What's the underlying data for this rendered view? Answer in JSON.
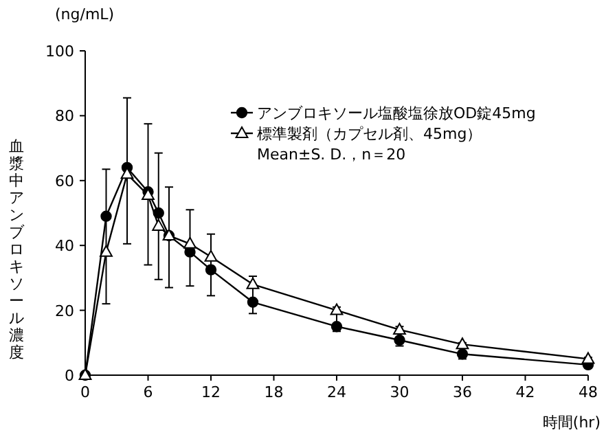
{
  "chart_data": {
    "type": "line",
    "x": [
      0,
      2,
      4,
      6,
      7,
      8,
      10,
      12,
      16,
      24,
      30,
      36,
      48
    ],
    "series": [
      {
        "name": "アンブロキソール塩酸塩徐放OD錠45mg",
        "color": "#000000",
        "marker": "circle",
        "values": [
          0,
          49,
          64,
          56.5,
          50,
          43,
          38,
          32.5,
          22.5,
          15,
          10.8,
          6.5,
          3.2
        ],
        "errors": [
          null,
          [
            22,
            63.5
          ],
          [
            40.5,
            85.5
          ],
          [
            34,
            77.5
          ],
          [
            29.5,
            68.5
          ],
          [
            27,
            58
          ],
          [
            27.5,
            51
          ],
          [
            24.5,
            43.5
          ],
          [
            19,
            30.5
          ],
          [
            13.5,
            21
          ],
          [
            9,
            15
          ],
          [
            5,
            10
          ],
          [
            2.5,
            5.5
          ]
        ]
      },
      {
        "name": "標準製剤（カプセル剤、45mg）",
        "color": "#000000",
        "marker": "triangle",
        "values": [
          0,
          38,
          62,
          55.5,
          46,
          43,
          40.5,
          36.5,
          28,
          20,
          14,
          9.5,
          5
        ]
      }
    ],
    "xlabel": "時間(hr)",
    "ylabel": "血漿中アンブロキソール濃度",
    "annotations": [
      "(ng/mL)",
      "Mean±S. D.，n＝20"
    ],
    "xlim": [
      0,
      48
    ],
    "xticks": [
      0,
      6,
      12,
      18,
      24,
      30,
      36,
      42,
      48
    ],
    "ylim": [
      0,
      100
    ],
    "yticks": [
      0,
      20,
      40,
      60,
      80,
      100
    ],
    "legend": "top right",
    "grid": false
  }
}
